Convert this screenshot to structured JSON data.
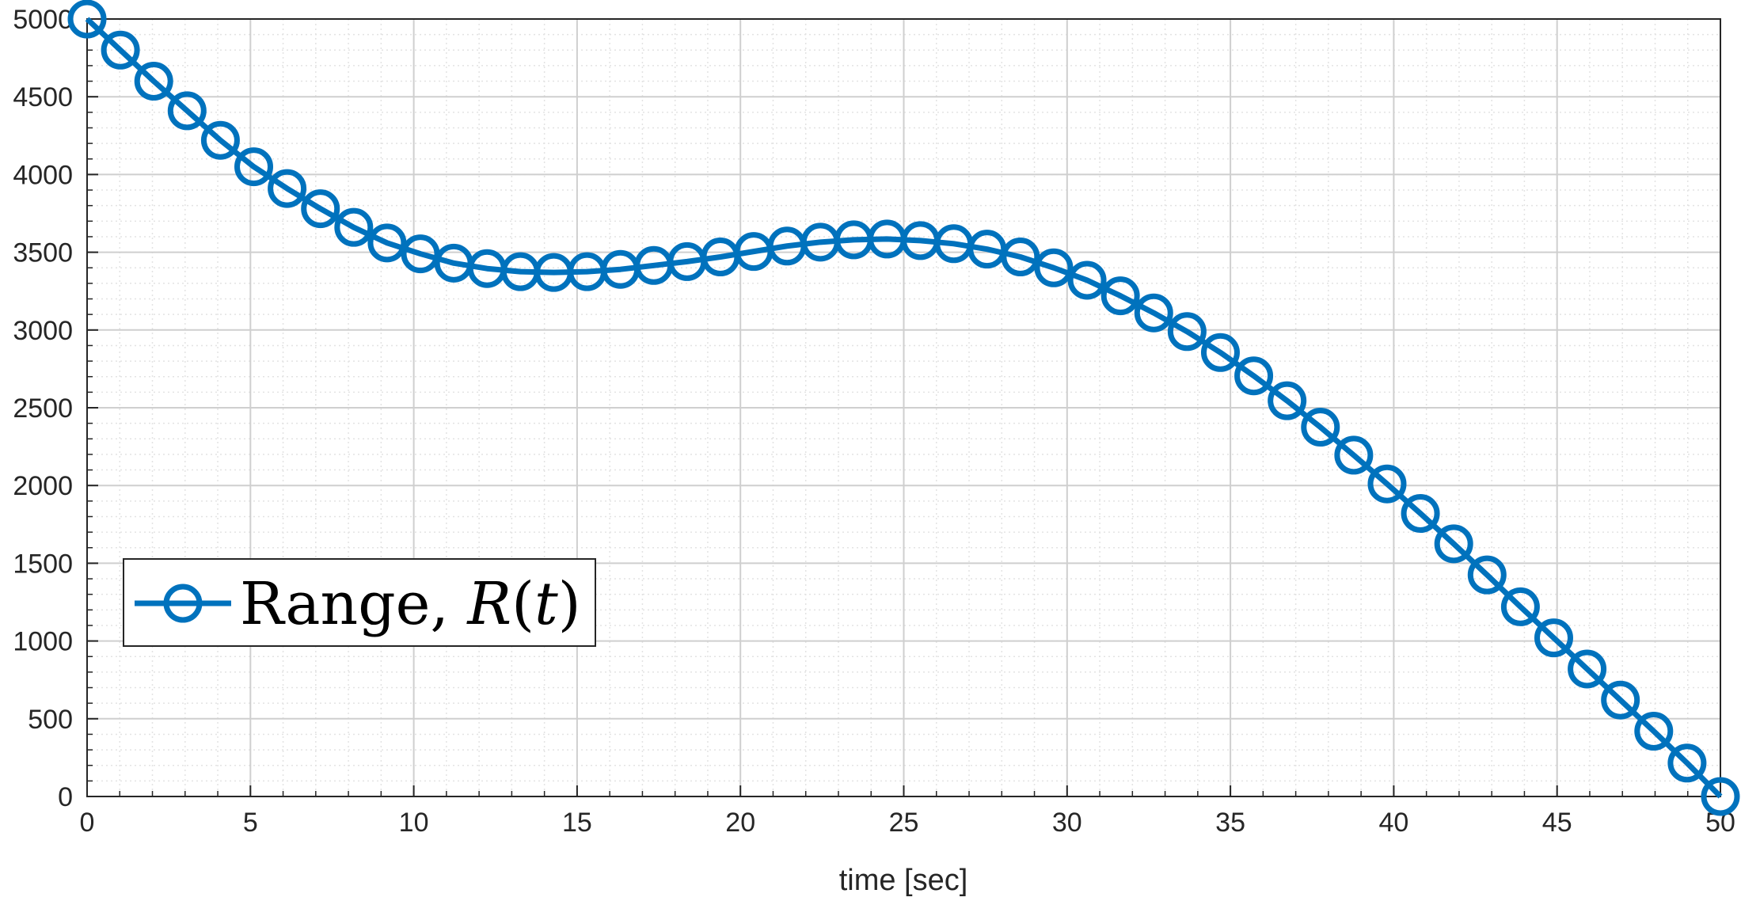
{
  "chart_data": {
    "type": "line",
    "title": "",
    "xlabel": "time [sec]",
    "ylabel": "",
    "xlim": [
      0,
      50
    ],
    "ylim": [
      0,
      5000
    ],
    "x_ticks": [
      0,
      5,
      10,
      15,
      20,
      25,
      30,
      35,
      40,
      45,
      50
    ],
    "y_ticks": [
      0,
      500,
      1000,
      1500,
      2000,
      2500,
      3000,
      3500,
      4000,
      4500,
      5000
    ],
    "x_minor_step": 1,
    "y_minor_step": 100,
    "grid": true,
    "minor_grid": true,
    "legend_placement": "left",
    "marker": "circle",
    "colors": {
      "series": "#0072BD",
      "axis": "#262626",
      "major_grid": "#cfcfcf",
      "minor_grid": "#e3e3e3"
    },
    "legend": {
      "label_roman": "Range, ",
      "label_math_italic_1": "R",
      "label_math_paren_open": "(",
      "label_math_italic_2": "t",
      "label_math_paren_close": ")"
    },
    "series": [
      {
        "name": "Range, R(t)",
        "x": [
          0,
          1.0204,
          2.0408,
          3.0612,
          4.0816,
          5.102,
          6.1224,
          7.1429,
          8.1633,
          9.1837,
          10.2041,
          11.2245,
          12.2449,
          13.2653,
          14.2857,
          15.3061,
          16.3265,
          17.3469,
          18.3673,
          19.3878,
          20.4082,
          21.4286,
          22.449,
          23.4694,
          24.4898,
          25.5102,
          26.5306,
          27.551,
          28.5714,
          29.5918,
          30.6122,
          31.6327,
          32.6531,
          33.6735,
          34.6939,
          35.7143,
          36.7347,
          37.7551,
          38.7755,
          39.7959,
          40.8163,
          41.8367,
          42.8571,
          43.8776,
          44.898,
          45.9184,
          46.9388,
          47.9592,
          48.9796,
          50
        ],
        "y": [
          5000,
          4800,
          4600,
          4410,
          4220,
          4050,
          3910,
          3780,
          3660,
          3560,
          3490,
          3430,
          3395,
          3375,
          3370,
          3375,
          3390,
          3415,
          3440,
          3470,
          3505,
          3540,
          3565,
          3580,
          3585,
          3575,
          3555,
          3520,
          3470,
          3400,
          3320,
          3220,
          3110,
          2990,
          2855,
          2705,
          2545,
          2375,
          2195,
          2010,
          1820,
          1625,
          1425,
          1220,
          1020,
          820,
          620,
          420,
          215,
          0
        ]
      }
    ]
  }
}
